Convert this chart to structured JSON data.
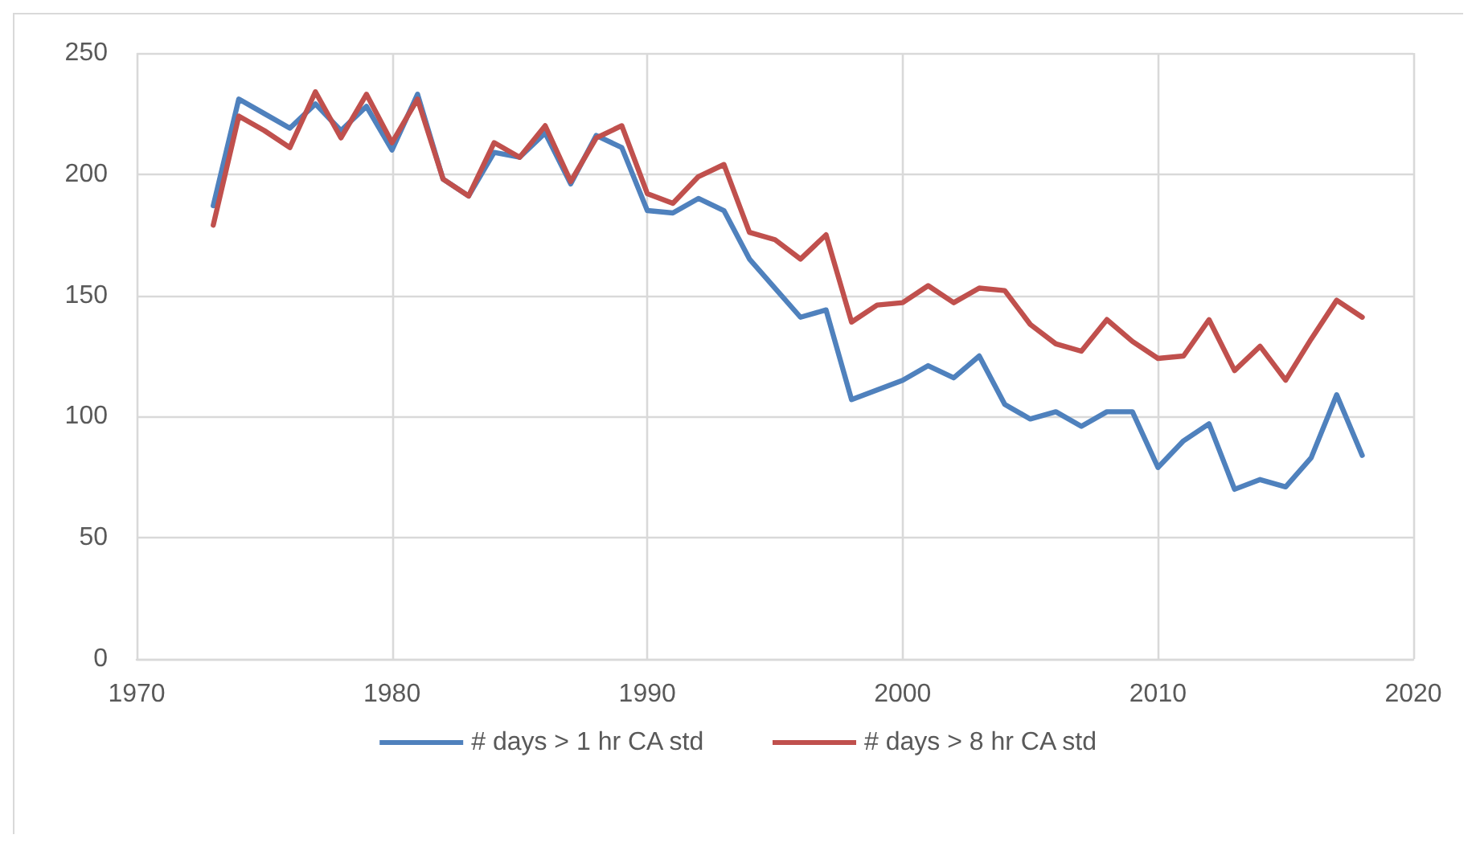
{
  "chart_data": {
    "type": "line",
    "x": [
      1973,
      1974,
      1975,
      1976,
      1977,
      1978,
      1979,
      1980,
      1981,
      1982,
      1983,
      1984,
      1985,
      1986,
      1987,
      1988,
      1989,
      1990,
      1991,
      1992,
      1993,
      1994,
      1995,
      1996,
      1997,
      1998,
      1999,
      2000,
      2001,
      2002,
      2003,
      2004,
      2005,
      2006,
      2007,
      2008,
      2009,
      2010,
      2011,
      2012,
      2013,
      2014,
      2015,
      2016,
      2017,
      2018
    ],
    "series": [
      {
        "name": "# days > 1 hr CA std",
        "color": "#4f81bd",
        "values": [
          187,
          231,
          225,
          219,
          229,
          218,
          228,
          210,
          233,
          198,
          191,
          209,
          207,
          217,
          196,
          216,
          211,
          185,
          184,
          190,
          185,
          165,
          153,
          141,
          144,
          107,
          111,
          115,
          121,
          116,
          125,
          105,
          99,
          102,
          96,
          102,
          102,
          79,
          90,
          97,
          70,
          74,
          71,
          83,
          109,
          84
        ]
      },
      {
        "name": "# days > 8 hr CA std",
        "color": "#c0504d",
        "values": [
          179,
          224,
          218,
          211,
          234,
          215,
          233,
          213,
          231,
          198,
          191,
          213,
          207,
          220,
          197,
          215,
          220,
          192,
          188,
          199,
          204,
          176,
          173,
          165,
          175,
          139,
          146,
          147,
          154,
          147,
          153,
          152,
          138,
          130,
          127,
          140,
          131,
          124,
          125,
          140,
          119,
          129,
          115,
          132,
          148,
          141
        ]
      }
    ],
    "xlim": [
      1970,
      2020
    ],
    "xticks": [
      1970,
      1980,
      1990,
      2000,
      2010,
      2020
    ],
    "ylim": [
      0,
      250
    ],
    "yticks": [
      0,
      50,
      100,
      150,
      200,
      250
    ],
    "grid": true,
    "legend": "bottom",
    "marker": "none",
    "line_style": "solid"
  }
}
